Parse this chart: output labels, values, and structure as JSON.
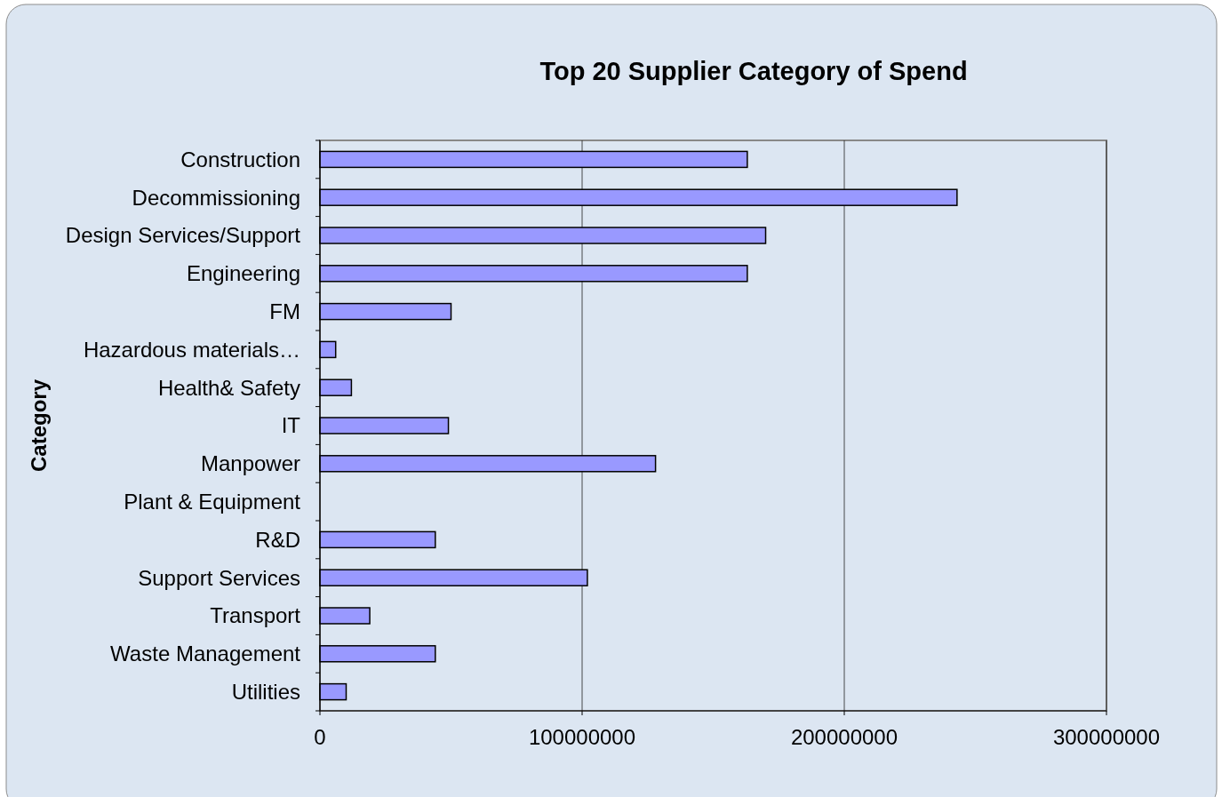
{
  "chart_data": {
    "type": "bar",
    "orientation": "horizontal",
    "title": "Top 20 Supplier Category of Spend",
    "ylabel": "Category",
    "categories": [
      "Construction",
      "Decommissioning",
      "Design Services/Support",
      "Engineering",
      "FM",
      "Hazardous materials…",
      "Health& Safety",
      "IT",
      "Manpower",
      "Plant & Equipment",
      "R&D",
      "Support Services",
      "Transport",
      "Waste Management",
      "Utilities"
    ],
    "series": [
      {
        "color": "#9999ff",
        "values": [
          163000000,
          243000000,
          170000000,
          163000000,
          50000000,
          6000000,
          12000000,
          49000000,
          128000000,
          0,
          44000000,
          102000000,
          19000000,
          44000000,
          10000000
        ]
      }
    ],
    "xlim": [
      0,
      300000000
    ],
    "xticks": [
      0,
      100000000,
      200000000,
      300000000
    ],
    "grid": "x"
  }
}
